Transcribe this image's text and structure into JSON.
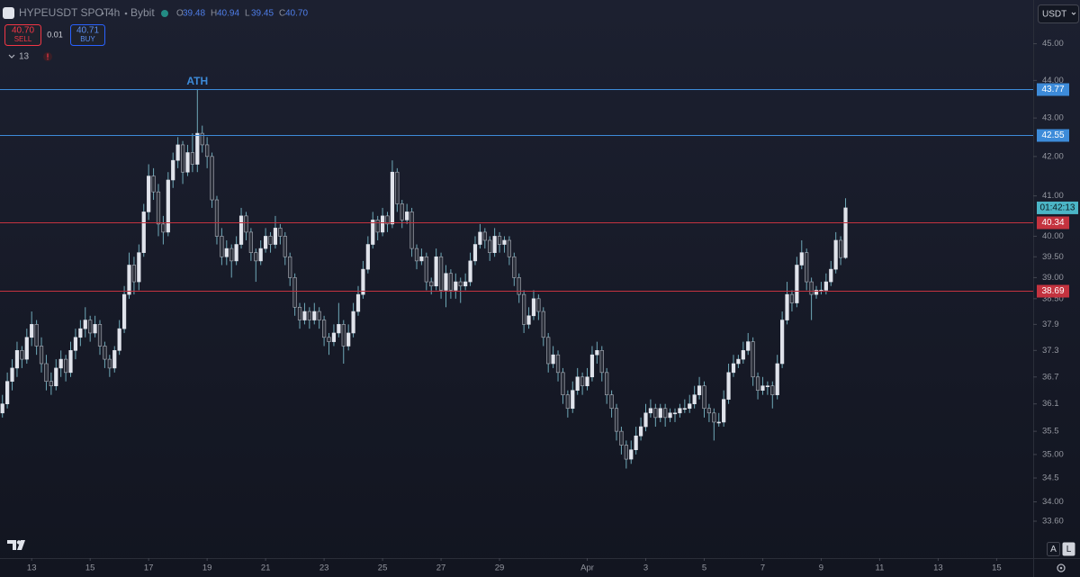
{
  "header": {
    "symbol": "HYPEUSDT SPOT",
    "interval": "4h",
    "exchange": "Bybit",
    "ohlc": [
      {
        "label": "O",
        "value": "39.48"
      },
      {
        "label": "H",
        "value": "40.94"
      },
      {
        "label": "L",
        "value": "39.45"
      },
      {
        "label": "C",
        "value": "40.70"
      }
    ],
    "sell_price": "40.70",
    "sell": "SELL",
    "spread": "0.01",
    "buy_price": "40.71",
    "buy": "BUY",
    "indicators": "13",
    "currency": "USDT",
    "scale_buttons": [
      "A",
      "L"
    ]
  },
  "chart_data": {
    "type": "candlestick",
    "log_scale": true,
    "annotation": "ATH",
    "countdown": "01:42:13",
    "up_color": "#e0e3eb",
    "down_color": "#2a2e39",
    "wick_color": "#6fa9b8",
    "ylim": [
      32.85,
      46.22
    ],
    "yticks": [
      {
        "value": 45,
        "label": "45.00"
      },
      {
        "value": 44,
        "label": "44.00"
      },
      {
        "value": 43,
        "label": "43.00"
      },
      {
        "value": 42,
        "label": "42.00"
      },
      {
        "value": 41,
        "label": "41.00"
      },
      {
        "value": 40,
        "label": "40.00"
      },
      {
        "value": 39.5,
        "label": "39.50"
      },
      {
        "value": 39,
        "label": "39.00"
      },
      {
        "value": 38.5,
        "label": "38.50"
      },
      37.9,
      37.3,
      36.7,
      36.1,
      35.5,
      {
        "value": 35,
        "label": "35.00"
      },
      34.5,
      {
        "value": 34,
        "label": "34.00"
      },
      {
        "value": 33.6,
        "label": "33.60"
      }
    ],
    "xlim": [
      -0.5,
      211.5
    ],
    "xticks": [
      {
        "value": 6,
        "label": "13"
      },
      {
        "value": 18,
        "label": "15"
      },
      {
        "value": 30,
        "label": "17"
      },
      {
        "value": 42,
        "label": "19"
      },
      {
        "value": 54,
        "label": "21"
      },
      {
        "value": 66,
        "label": "23"
      },
      {
        "value": 78,
        "label": "25"
      },
      {
        "value": 90,
        "label": "27"
      },
      {
        "value": 102,
        "label": "29"
      },
      {
        "value": 120,
        "label": "Apr"
      },
      {
        "value": 132,
        "label": "3"
      },
      {
        "value": 144,
        "label": "5"
      },
      {
        "value": 156,
        "label": "7"
      },
      {
        "value": 168,
        "label": "9"
      },
      {
        "value": 180,
        "label": "11"
      },
      {
        "value": 192,
        "label": "13"
      },
      {
        "value": 204,
        "label": "15"
      }
    ],
    "levels": [
      {
        "value": 43.77,
        "color": "#3d8bd9"
      },
      {
        "value": 42.55,
        "color": "#3d8bd9"
      },
      {
        "value": 40.34,
        "color": "#c4333f"
      },
      {
        "value": 38.69,
        "color": "#c4333f"
      }
    ],
    "candles": [
      [
        35.9,
        36.3,
        35.8,
        36.1
      ],
      [
        36.1,
        36.8,
        36.0,
        36.6
      ],
      [
        36.6,
        37.1,
        36.4,
        36.9
      ],
      [
        36.9,
        37.5,
        36.7,
        37.3
      ],
      [
        37.3,
        37.4,
        36.9,
        37.1
      ],
      [
        37.1,
        37.8,
        37.0,
        37.6
      ],
      [
        37.6,
        38.2,
        37.4,
        37.9
      ],
      [
        37.9,
        38.0,
        37.2,
        37.4
      ],
      [
        37.4,
        37.6,
        36.8,
        37.0
      ],
      [
        37.0,
        37.2,
        36.4,
        36.6
      ],
      [
        36.6,
        36.8,
        36.3,
        36.5
      ],
      [
        36.5,
        37.1,
        36.4,
        36.9
      ],
      [
        36.9,
        37.3,
        36.7,
        37.1
      ],
      [
        37.1,
        37.2,
        36.6,
        36.8
      ],
      [
        36.8,
        37.5,
        36.7,
        37.3
      ],
      [
        37.3,
        37.8,
        37.1,
        37.6
      ],
      [
        37.6,
        38.0,
        37.4,
        37.8
      ],
      [
        37.8,
        38.3,
        37.6,
        38.0
      ],
      [
        38.0,
        38.1,
        37.5,
        37.7
      ],
      [
        37.7,
        38.1,
        37.6,
        37.9
      ],
      [
        37.9,
        38.0,
        37.2,
        37.4
      ],
      [
        37.4,
        37.5,
        36.9,
        37.1
      ],
      [
        37.1,
        37.2,
        36.7,
        36.9
      ],
      [
        36.9,
        37.4,
        36.8,
        37.3
      ],
      [
        37.3,
        38.0,
        37.2,
        37.8
      ],
      [
        37.8,
        38.8,
        37.7,
        38.6
      ],
      [
        38.6,
        39.6,
        38.5,
        39.3
      ],
      [
        39.3,
        39.5,
        38.6,
        38.9
      ],
      [
        38.9,
        39.8,
        38.7,
        39.6
      ],
      [
        39.6,
        40.8,
        39.5,
        40.6
      ],
      [
        40.6,
        41.8,
        40.4,
        41.5
      ],
      [
        41.5,
        41.7,
        40.9,
        41.1
      ],
      [
        41.1,
        41.3,
        40.0,
        40.3
      ],
      [
        40.3,
        40.5,
        39.8,
        40.1
      ],
      [
        40.1,
        41.6,
        40.0,
        41.4
      ],
      [
        41.4,
        42.1,
        41.2,
        41.9
      ],
      [
        41.9,
        42.5,
        41.7,
        42.3
      ],
      [
        42.3,
        42.4,
        41.3,
        41.6
      ],
      [
        41.6,
        42.3,
        41.5,
        42.1
      ],
      [
        42.1,
        42.6,
        41.6,
        41.8
      ],
      [
        41.8,
        43.77,
        41.6,
        42.6
      ],
      [
        42.6,
        42.8,
        42.1,
        42.3
      ],
      [
        42.3,
        42.5,
        41.7,
        42.0
      ],
      [
        42.0,
        42.1,
        40.7,
        40.9
      ],
      [
        40.9,
        41.0,
        39.8,
        40.0
      ],
      [
        40.0,
        40.2,
        39.3,
        39.5
      ],
      [
        39.5,
        39.9,
        39.3,
        39.7
      ],
      [
        39.7,
        39.8,
        39.0,
        39.4
      ],
      [
        39.4,
        40.0,
        39.3,
        39.8
      ],
      [
        39.8,
        40.7,
        39.7,
        40.5
      ],
      [
        40.5,
        40.6,
        39.9,
        40.1
      ],
      [
        40.1,
        40.2,
        39.4,
        39.6
      ],
      [
        39.6,
        39.7,
        38.9,
        39.4
      ],
      [
        39.4,
        39.9,
        39.3,
        39.7
      ],
      [
        39.7,
        40.2,
        39.6,
        40.0
      ],
      [
        40.0,
        40.1,
        39.6,
        39.8
      ],
      [
        39.8,
        40.5,
        39.7,
        40.2
      ],
      [
        40.2,
        40.3,
        39.8,
        40.0
      ],
      [
        40.0,
        40.1,
        39.3,
        39.5
      ],
      [
        39.5,
        39.6,
        38.8,
        39.0
      ],
      [
        39.0,
        39.1,
        38.1,
        38.3
      ],
      [
        38.3,
        38.4,
        37.8,
        38.0
      ],
      [
        38.0,
        38.4,
        37.9,
        38.2
      ],
      [
        38.2,
        38.3,
        37.8,
        38.0
      ],
      [
        38.0,
        38.4,
        37.9,
        38.2
      ],
      [
        38.2,
        38.3,
        37.8,
        38.0
      ],
      [
        38.0,
        38.1,
        37.4,
        37.6
      ],
      [
        37.6,
        37.7,
        37.2,
        37.5
      ],
      [
        37.5,
        37.9,
        37.4,
        37.7
      ],
      [
        37.7,
        38.4,
        37.6,
        37.9
      ],
      [
        37.9,
        38.0,
        37.0,
        37.4
      ],
      [
        37.4,
        37.9,
        37.3,
        37.7
      ],
      [
        37.7,
        38.4,
        37.6,
        38.2
      ],
      [
        38.2,
        38.8,
        38.1,
        38.6
      ],
      [
        38.6,
        39.4,
        38.5,
        39.2
      ],
      [
        39.2,
        40.0,
        39.1,
        39.8
      ],
      [
        39.8,
        40.6,
        39.7,
        40.4
      ],
      [
        40.4,
        40.5,
        39.9,
        40.1
      ],
      [
        40.1,
        40.7,
        40.0,
        40.5
      ],
      [
        40.5,
        40.6,
        40.1,
        40.3
      ],
      [
        40.3,
        41.9,
        40.2,
        41.6
      ],
      [
        41.6,
        41.7,
        40.6,
        40.8
      ],
      [
        40.8,
        40.9,
        40.2,
        40.4
      ],
      [
        40.4,
        40.8,
        40.3,
        40.6
      ],
      [
        40.6,
        40.7,
        39.5,
        39.7
      ],
      [
        39.7,
        39.8,
        39.2,
        39.4
      ],
      [
        39.4,
        39.7,
        39.3,
        39.5
      ],
      [
        39.5,
        39.6,
        38.7,
        38.9
      ],
      [
        38.9,
        39.0,
        38.6,
        38.8
      ],
      [
        38.8,
        39.7,
        38.7,
        39.5
      ],
      [
        39.5,
        39.6,
        38.5,
        38.7
      ],
      [
        38.7,
        39.3,
        38.3,
        39.1
      ],
      [
        39.1,
        39.2,
        38.5,
        38.7
      ],
      [
        38.7,
        39.1,
        38.5,
        38.9
      ],
      [
        38.9,
        39.0,
        38.4,
        38.8
      ],
      [
        38.8,
        39.1,
        38.7,
        38.9
      ],
      [
        38.9,
        39.6,
        38.8,
        39.4
      ],
      [
        39.4,
        40.0,
        39.3,
        39.8
      ],
      [
        39.8,
        40.3,
        39.7,
        40.1
      ],
      [
        40.1,
        40.2,
        39.7,
        39.9
      ],
      [
        39.9,
        40.0,
        39.4,
        39.6
      ],
      [
        39.6,
        40.2,
        39.5,
        40.0
      ],
      [
        40.0,
        40.1,
        39.6,
        39.8
      ],
      [
        39.8,
        40.0,
        39.6,
        39.9
      ],
      [
        39.9,
        40.0,
        39.3,
        39.5
      ],
      [
        39.5,
        39.6,
        38.8,
        39.0
      ],
      [
        39.0,
        39.1,
        38.4,
        38.6
      ],
      [
        38.6,
        38.7,
        37.7,
        37.9
      ],
      [
        37.9,
        38.3,
        37.8,
        38.1
      ],
      [
        38.1,
        38.7,
        38.0,
        38.5
      ],
      [
        38.5,
        38.6,
        38.0,
        38.2
      ],
      [
        38.2,
        38.3,
        37.4,
        37.6
      ],
      [
        37.6,
        37.7,
        36.8,
        37.0
      ],
      [
        37.0,
        37.4,
        36.9,
        37.2
      ],
      [
        37.2,
        37.3,
        36.6,
        36.8
      ],
      [
        36.8,
        36.9,
        36.1,
        36.3
      ],
      [
        36.3,
        36.4,
        35.8,
        36.0
      ],
      [
        36.0,
        36.6,
        35.9,
        36.4
      ],
      [
        36.4,
        36.9,
        36.3,
        36.7
      ],
      [
        36.7,
        36.8,
        36.3,
        36.5
      ],
      [
        36.5,
        36.9,
        36.4,
        36.7
      ],
      [
        36.7,
        37.4,
        36.6,
        37.2
      ],
      [
        37.2,
        37.5,
        37.0,
        37.3
      ],
      [
        37.3,
        37.4,
        36.6,
        36.8
      ],
      [
        36.8,
        36.9,
        36.1,
        36.3
      ],
      [
        36.3,
        36.4,
        35.8,
        36.0
      ],
      [
        36.0,
        36.1,
        35.3,
        35.5
      ],
      [
        35.5,
        35.6,
        35.0,
        35.2
      ],
      [
        35.2,
        35.3,
        34.7,
        34.9
      ],
      [
        34.9,
        35.3,
        34.8,
        35.1
      ],
      [
        35.1,
        35.6,
        35.0,
        35.4
      ],
      [
        35.4,
        35.8,
        35.3,
        35.6
      ],
      [
        35.6,
        36.1,
        35.5,
        35.9
      ],
      [
        35.9,
        36.2,
        35.8,
        36.0
      ],
      [
        36.0,
        36.1,
        35.6,
        35.8
      ],
      [
        35.8,
        36.1,
        35.7,
        36.0
      ],
      [
        36.0,
        36.1,
        35.6,
        35.8
      ],
      [
        35.8,
        36.0,
        35.7,
        35.9
      ],
      [
        35.9,
        36.0,
        35.7,
        35.9
      ],
      [
        35.9,
        36.1,
        35.8,
        36.0
      ],
      [
        36.0,
        36.2,
        35.9,
        36.0
      ],
      [
        36.0,
        36.3,
        35.9,
        36.1
      ],
      [
        36.1,
        36.5,
        36.0,
        36.3
      ],
      [
        36.3,
        36.7,
        36.2,
        36.5
      ],
      [
        36.5,
        36.6,
        35.8,
        36.0
      ],
      [
        36.0,
        36.1,
        35.7,
        35.9
      ],
      [
        35.9,
        36.0,
        35.3,
        35.7
      ],
      [
        35.7,
        35.9,
        35.6,
        35.7
      ],
      [
        35.7,
        36.4,
        35.6,
        36.2
      ],
      [
        36.2,
        37.0,
        36.1,
        36.8
      ],
      [
        36.8,
        37.2,
        36.7,
        37.0
      ],
      [
        37.0,
        37.2,
        36.9,
        37.1
      ],
      [
        37.1,
        37.5,
        37.0,
        37.3
      ],
      [
        37.3,
        37.7,
        37.2,
        37.5
      ],
      [
        37.5,
        37.6,
        36.5,
        36.7
      ],
      [
        36.7,
        36.8,
        36.2,
        36.4
      ],
      [
        36.4,
        36.7,
        36.3,
        36.5
      ],
      [
        36.5,
        36.6,
        36.3,
        36.5
      ],
      [
        36.5,
        36.6,
        36.0,
        36.3
      ],
      [
        36.3,
        37.2,
        36.2,
        37.0
      ],
      [
        37.0,
        38.2,
        36.9,
        38.0
      ],
      [
        38.0,
        38.9,
        37.9,
        38.6
      ],
      [
        38.6,
        38.7,
        38.2,
        38.4
      ],
      [
        38.4,
        39.5,
        38.3,
        39.3
      ],
      [
        39.3,
        39.9,
        39.2,
        39.6
      ],
      [
        39.6,
        39.7,
        38.7,
        38.9
      ],
      [
        38.9,
        39.0,
        38.0,
        38.6
      ],
      [
        38.6,
        38.8,
        38.5,
        38.7
      ],
      [
        38.7,
        38.9,
        38.6,
        38.7
      ],
      [
        38.7,
        39.1,
        38.6,
        38.9
      ],
      [
        38.9,
        39.4,
        38.8,
        39.2
      ],
      [
        39.2,
        40.1,
        39.1,
        39.9
      ],
      [
        39.9,
        40.0,
        39.3,
        39.48
      ],
      [
        39.48,
        40.94,
        39.45,
        40.7
      ]
    ]
  }
}
